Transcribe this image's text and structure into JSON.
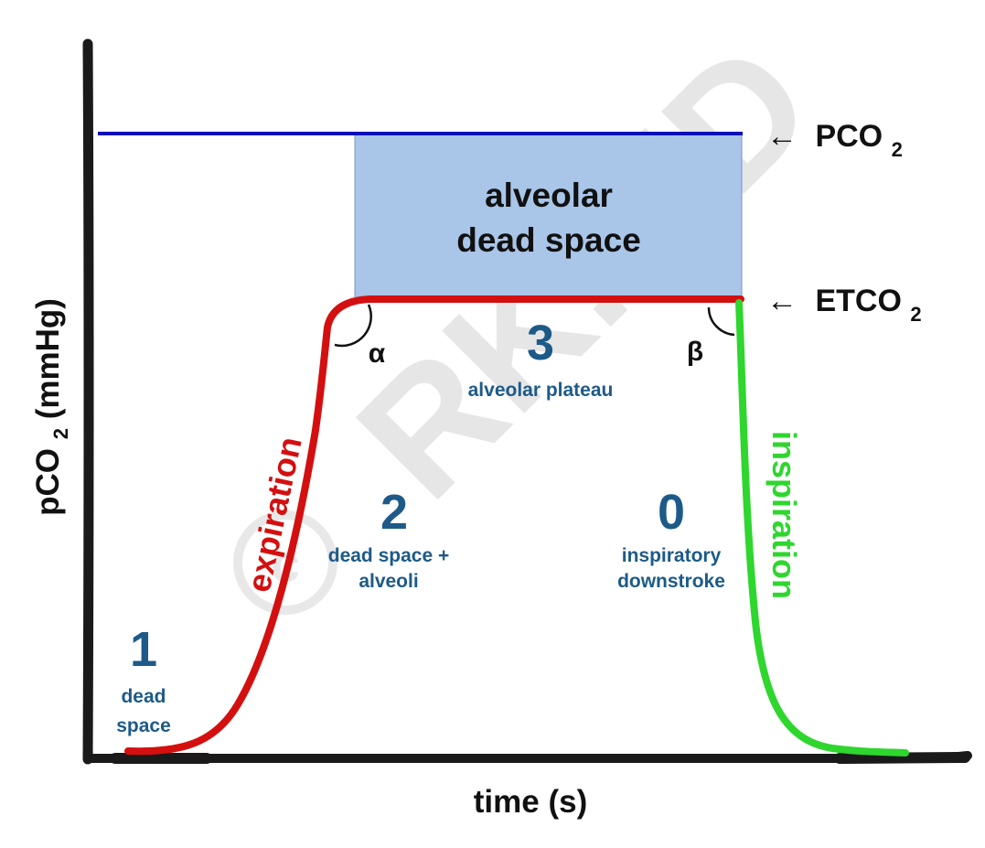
{
  "diagram": {
    "x_axis_label": "time (s)",
    "y_axis_label": {
      "base": "pCO",
      "sub": "2",
      "rest": " (mmHg)"
    },
    "reference_lines": {
      "pco2": {
        "arrow": "←",
        "base": "PCO",
        "sub": "2"
      },
      "etco2": {
        "arrow": "←",
        "base": "ETCO",
        "sub": "2"
      }
    },
    "dead_space_box": {
      "line1": "alveolar",
      "line2": "dead space"
    },
    "angles": {
      "alpha": "α",
      "beta": "β"
    },
    "curve_labels": {
      "expiration": "expiration",
      "inspiration": "inspiration"
    },
    "phases": [
      {
        "number": "1",
        "line1": "dead",
        "line2": "space"
      },
      {
        "number": "2",
        "line1": "dead space +",
        "line2": "alveoli"
      },
      {
        "number": "3",
        "line1": "alveolar plateau"
      },
      {
        "number": "0",
        "line1": "inspiratory",
        "line2": "downstroke"
      }
    ],
    "watermark": "RK.MD",
    "colors": {
      "axis": "#1a1a1a",
      "pco2_line": "#0a10b8",
      "box_fill": "#a9c5e8",
      "expiration_curve": "#d40f0f",
      "inspiration_curve": "#2ed62e",
      "phase_text": "#1d5a88",
      "label_text": "#111111",
      "watermark": "#e4e4e4"
    }
  }
}
